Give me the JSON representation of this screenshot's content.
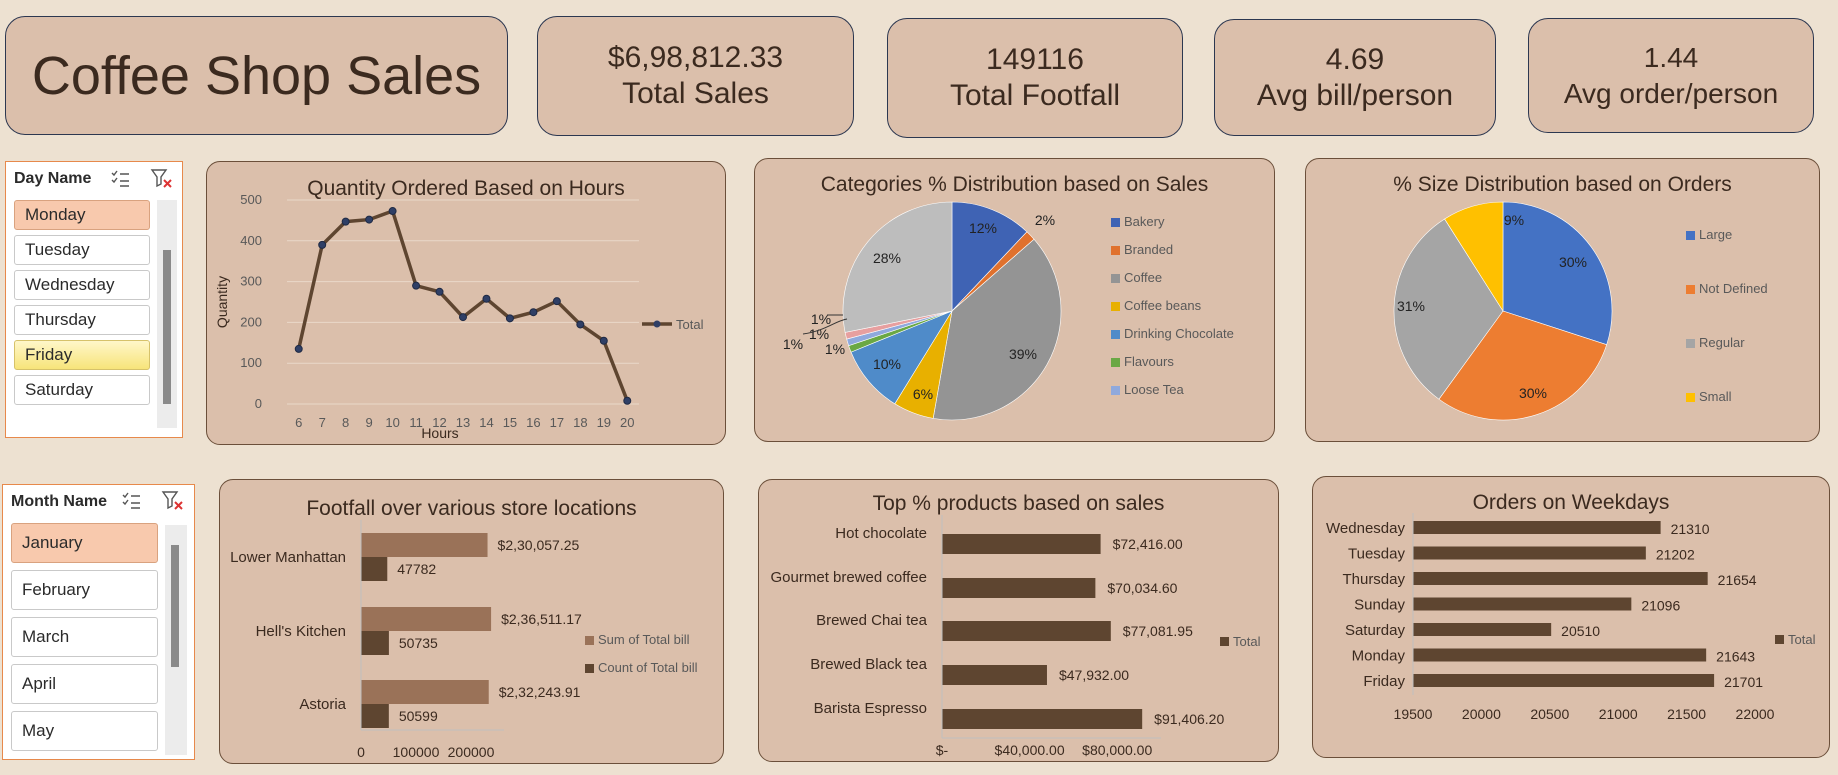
{
  "title": "Coffee Shop Sales",
  "kpis": [
    {
      "value": "$6,98,812.33",
      "label": "Total Sales"
    },
    {
      "value": "149116",
      "label": "Total Footfall"
    },
    {
      "value": "4.69",
      "label": "Avg bill/person"
    },
    {
      "value": "1.44",
      "label": "Avg order/person"
    }
  ],
  "slicers": {
    "day": {
      "header": "Day Name",
      "items": [
        "Monday",
        "Tuesday",
        "Wednesday",
        "Thursday",
        "Friday",
        "Saturday"
      ],
      "selected": "Monday",
      "highlighted": "Friday"
    },
    "month": {
      "header": "Month Name",
      "items": [
        "January",
        "February",
        "March",
        "April",
        "May"
      ],
      "selected": "January"
    }
  },
  "colors": {
    "brown_dark": "#5e4530",
    "brown_light": "#9a7258",
    "card_bg": "#dbbfab",
    "page_bg": "#ede1d1",
    "kpi_border": "#2c3750",
    "slicer_border": "#e7894b"
  },
  "chart_data": [
    {
      "type": "line",
      "title": "Quantity Ordered Based on Hours",
      "xlabel": "Hours",
      "ylabel": "Quantity",
      "x": [
        "6",
        "7",
        "8",
        "9",
        "10",
        "11",
        "12",
        "13",
        "14",
        "15",
        "16",
        "17",
        "18",
        "19",
        "20"
      ],
      "series": [
        {
          "name": "Total",
          "values": [
            135,
            390,
            447,
            452,
            473,
            290,
            275,
            213,
            258,
            210,
            225,
            252,
            195,
            155,
            8
          ]
        }
      ],
      "y_ticks": [
        "0",
        "100",
        "200",
        "300",
        "400",
        "500"
      ],
      "ylim": [
        0,
        500
      ],
      "grid": true,
      "legend": "right"
    },
    {
      "type": "pie",
      "title": "Categories % Distribution based on Sales",
      "legend": "right",
      "slices": [
        {
          "name": "Bakery",
          "value": 12,
          "label": "12%",
          "color": "#3f63b4"
        },
        {
          "name": "Branded",
          "value": 1.5,
          "label": "2%",
          "color": "#e0712d"
        },
        {
          "name": "Coffee",
          "value": 39,
          "label": "39%",
          "color": "#949494"
        },
        {
          "name": "Coffee beans",
          "value": 6,
          "label": "6%",
          "color": "#e8b000"
        },
        {
          "name": "Drinking Chocolate",
          "value": 10,
          "label": "10%",
          "color": "#4f8bc9"
        },
        {
          "name": "Flavours",
          "value": 1,
          "label": "1%",
          "color": "#6aa845"
        },
        {
          "name": "Loose Tea",
          "value": 1,
          "label": "1%",
          "color": "#8fa9dd"
        },
        {
          "name": "",
          "value": 1,
          "label": "1%",
          "color": "#e79f9f"
        },
        {
          "name": "",
          "value": 28,
          "label": "28%",
          "color": "#bdbdbd"
        }
      ]
    },
    {
      "type": "pie",
      "title": "% Size Distribution based on Orders",
      "legend": "right",
      "slices": [
        {
          "name": "Large",
          "value": 30,
          "label": "30%",
          "color": "#4472c4"
        },
        {
          "name": "Not Defined",
          "value": 30,
          "label": "30%",
          "color": "#ed7d31"
        },
        {
          "name": "Regular",
          "value": 31,
          "label": "31%",
          "color": "#a5a5a5"
        },
        {
          "name": "Small",
          "value": 9,
          "label": "9%",
          "color": "#ffc000"
        }
      ]
    },
    {
      "type": "bar",
      "orientation": "horizontal",
      "title": "Footfall over various store locations",
      "categories": [
        "Lower Manhattan",
        "Hell's Kitchen",
        "Astoria"
      ],
      "series": [
        {
          "name": "Sum of Total bill",
          "values": [
            230057.25,
            236511.17,
            232243.91
          ],
          "labels": [
            "$2,30,057.25",
            "$2,36,511.17",
            "$2,32,243.91"
          ],
          "color": "#9a7258"
        },
        {
          "name": "Count of Total bill",
          "values": [
            47782,
            50735,
            50599
          ],
          "labels": [
            "47782",
            "50735",
            "50599"
          ],
          "color": "#5e4530"
        }
      ],
      "x_ticks": [
        "0",
        "100000",
        "200000"
      ],
      "xlim": [
        0,
        260000
      ],
      "legend": "right"
    },
    {
      "type": "bar",
      "orientation": "horizontal",
      "title": "Top % products based on sales",
      "categories": [
        "Hot chocolate",
        "Gourmet brewed coffee",
        "Brewed Chai tea",
        "Brewed Black tea",
        "Barista Espresso"
      ],
      "series": [
        {
          "name": "Total",
          "values": [
            72416.0,
            70034.6,
            77081.95,
            47932.0,
            91406.2
          ],
          "labels": [
            "$72,416.00",
            "$70,034.60",
            "$77,081.95",
            "$47,932.00",
            "$91,406.20"
          ],
          "color": "#5e4530"
        }
      ],
      "x_ticks": [
        "$-",
        "$40,000.00",
        "$80,000.00"
      ],
      "xlim": [
        0,
        100000
      ],
      "legend": "right"
    },
    {
      "type": "bar",
      "orientation": "horizontal",
      "title": "Orders on Weekdays",
      "categories": [
        "Wednesday",
        "Tuesday",
        "Thursday",
        "Sunday",
        "Saturday",
        "Monday",
        "Friday"
      ],
      "series": [
        {
          "name": "Total",
          "values": [
            21310,
            21202,
            21654,
            21096,
            20510,
            21643,
            21701
          ],
          "labels": [
            "21310",
            "21202",
            "21654",
            "21096",
            "20510",
            "21643",
            "21701"
          ],
          "color": "#5e4530"
        }
      ],
      "x_ticks": [
        "19500",
        "20000",
        "20500",
        "21000",
        "21500",
        "22000"
      ],
      "xlim": [
        19500,
        22000
      ],
      "legend": "right"
    }
  ]
}
